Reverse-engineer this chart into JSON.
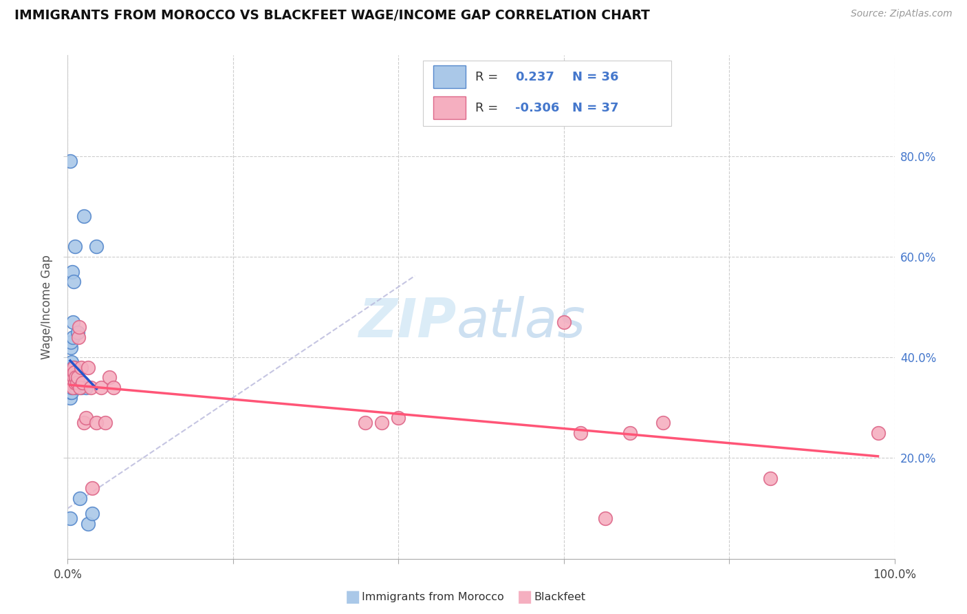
{
  "title": "IMMIGRANTS FROM MOROCCO VS BLACKFEET WAGE/INCOME GAP CORRELATION CHART",
  "source": "Source: ZipAtlas.com",
  "ylabel": "Wage/Income Gap",
  "xlim": [
    0.0,
    100.0
  ],
  "ylim": [
    0.0,
    100.0
  ],
  "xtick_positions": [
    0,
    20,
    40,
    60,
    80,
    100
  ],
  "xtick_labels": [
    "0.0%",
    "",
    "",
    "",
    "",
    "100.0%"
  ],
  "ytick_positions": [
    20,
    40,
    60,
    80
  ],
  "ytick_labels": [
    "20.0%",
    "40.0%",
    "60.0%",
    "80.0%"
  ],
  "r_morocco": 0.237,
  "n_morocco": 36,
  "r_blackfeet": -0.306,
  "n_blackfeet": 37,
  "morocco_face": "#aac8e8",
  "morocco_edge": "#5588cc",
  "blackfeet_face": "#f5afc0",
  "blackfeet_edge": "#dd6688",
  "trend_morocco": "#2255cc",
  "trend_blackfeet": "#ff5577",
  "diag_color": "#bbbbdd",
  "grid_color": "#cccccc",
  "right_tick_color": "#4477cc",
  "morocco_x": [
    0.3,
    0.3,
    0.3,
    0.3,
    0.35,
    0.35,
    0.35,
    0.4,
    0.4,
    0.4,
    0.4,
    0.4,
    0.45,
    0.45,
    0.5,
    0.5,
    0.5,
    0.5,
    0.55,
    0.55,
    0.6,
    0.6,
    0.65,
    0.7,
    0.7,
    0.8,
    0.9,
    1.0,
    1.2,
    1.5,
    1.6,
    2.0,
    2.2,
    2.5,
    3.0,
    3.5
  ],
  "morocco_y": [
    79,
    8,
    32,
    34,
    34,
    35,
    36,
    33,
    34,
    38,
    42,
    43,
    35,
    36,
    33,
    34,
    38,
    39,
    35,
    57,
    38,
    47,
    44,
    36,
    55,
    38,
    62,
    34,
    45,
    12,
    34,
    68,
    34,
    7,
    9,
    62
  ],
  "blackfeet_x": [
    0.3,
    0.4,
    0.5,
    0.6,
    0.65,
    0.7,
    0.75,
    0.8,
    0.9,
    1.0,
    1.1,
    1.2,
    1.3,
    1.4,
    1.5,
    1.6,
    1.8,
    2.0,
    2.2,
    2.5,
    2.8,
    3.0,
    3.5,
    4.0,
    4.5,
    5.0,
    5.5,
    36,
    38,
    40,
    60,
    62,
    65,
    68,
    72,
    85,
    98
  ],
  "blackfeet_y": [
    35,
    37,
    36,
    35,
    34,
    38,
    36,
    37,
    35,
    36,
    35,
    36,
    44,
    46,
    34,
    38,
    35,
    27,
    28,
    38,
    34,
    14,
    27,
    34,
    27,
    36,
    34,
    27,
    27,
    28,
    47,
    25,
    8,
    25,
    27,
    16,
    25
  ]
}
